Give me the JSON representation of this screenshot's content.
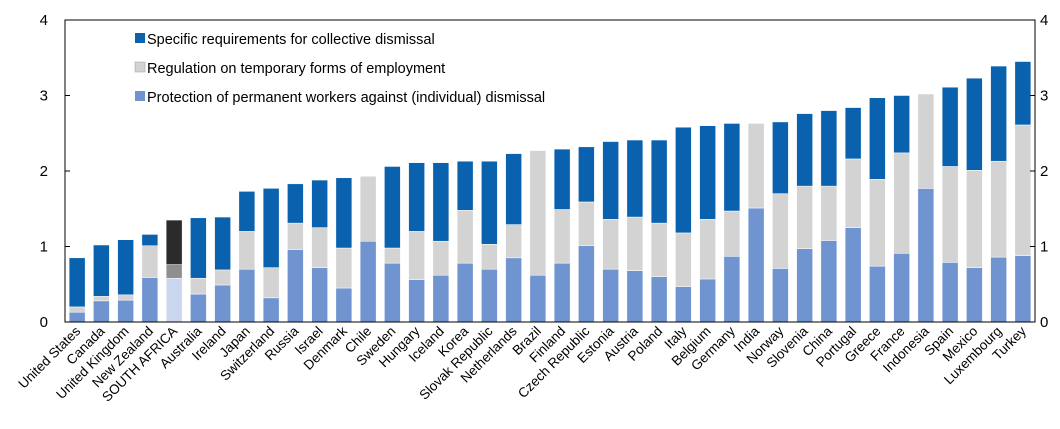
{
  "chart_data": {
    "type": "bar",
    "stacked": true,
    "ylim": [
      0,
      4
    ],
    "yticks": [
      0,
      1,
      2,
      3,
      4
    ],
    "right_axis": true,
    "grid": false,
    "legend_position": "top-left",
    "highlight_category": "SOUTH AFRICA",
    "categories": [
      "United States",
      "Canada",
      "United Kingdom",
      "New Zealand",
      "SOUTH AFRICA",
      "Australia",
      "Ireland",
      "Japan",
      "Switzerland",
      "Russia",
      "Israel",
      "Denmark",
      "Chile",
      "Sweden",
      "Hungary",
      "Iceland",
      "Korea",
      "Slovak Republic",
      "Netherlands",
      "Brazil",
      "Finland",
      "Czech Republic",
      "Estonia",
      "Austria",
      "Poland",
      "Italy",
      "Belgium",
      "Germany",
      "India",
      "Norway",
      "Slovenia",
      "China",
      "Portugal",
      "Greece",
      "France",
      "Indonesia",
      "Spain",
      "Mexico",
      "Luxembourg",
      "Turkey"
    ],
    "series": [
      {
        "name": "Protection of permanent workers against (individual) dismissal",
        "color": "#7094cf",
        "highlight_color": "#c9d6ee",
        "values": [
          0.13,
          0.28,
          0.29,
          0.59,
          0.58,
          0.37,
          0.49,
          0.7,
          0.32,
          0.96,
          0.72,
          0.45,
          1.07,
          0.78,
          0.56,
          0.62,
          0.78,
          0.7,
          0.85,
          0.62,
          0.78,
          1.01,
          0.7,
          0.68,
          0.6,
          0.47,
          0.57,
          0.87,
          1.51,
          0.71,
          0.97,
          1.08,
          1.25,
          0.74,
          0.91,
          1.77,
          0.79,
          0.72,
          0.86,
          0.88
        ]
      },
      {
        "name": "Regulation on temporary forms of employment",
        "color": "#d3d3d3",
        "highlight_color": "#8f8f8f",
        "values": [
          0.07,
          0.06,
          0.07,
          0.42,
          0.18,
          0.21,
          0.2,
          0.5,
          0.4,
          0.35,
          0.53,
          0.53,
          0.86,
          0.2,
          0.64,
          0.45,
          0.7,
          0.33,
          0.44,
          1.65,
          0.71,
          0.58,
          0.66,
          0.71,
          0.71,
          0.71,
          0.79,
          0.6,
          1.12,
          0.99,
          0.83,
          0.72,
          0.91,
          1.15,
          1.33,
          1.25,
          1.27,
          1.29,
          1.27,
          1.73
        ]
      },
      {
        "name": "Specific requirements for collective dismissal",
        "color": "#0a61ad",
        "highlight_color": "#2b2b2b",
        "values": [
          0.65,
          0.68,
          0.73,
          0.15,
          0.59,
          0.8,
          0.7,
          0.53,
          1.05,
          0.52,
          0.63,
          0.93,
          0.0,
          1.08,
          0.91,
          1.04,
          0.65,
          1.1,
          0.94,
          0.0,
          0.8,
          0.73,
          1.03,
          1.02,
          1.1,
          1.4,
          1.24,
          1.16,
          0.0,
          0.95,
          0.96,
          1.0,
          0.68,
          1.08,
          0.76,
          0.0,
          1.05,
          1.22,
          1.26,
          0.84
        ]
      }
    ]
  }
}
